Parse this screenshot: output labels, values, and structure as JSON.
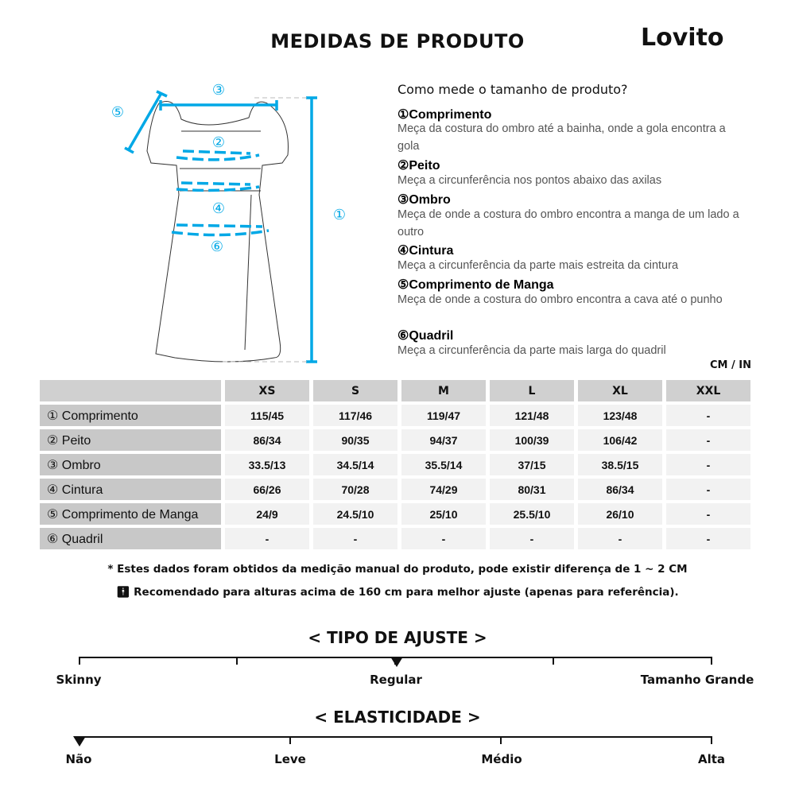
{
  "header": {
    "title": "MEDIDAS DE PRODUTO",
    "brand": "Lovito"
  },
  "guide": {
    "question": "Como mede o tamanho de produto?",
    "items": [
      {
        "title": "①Comprimento",
        "desc": "Meça da costura do ombro até a bainha, onde a gola encontra a gola"
      },
      {
        "title": "②Peito",
        "desc": "Meça a circunferência nos pontos abaixo das axilas"
      },
      {
        "title": "③Ombro",
        "desc": "Meça de onde a costura do ombro encontra a manga de um lado a outro"
      },
      {
        "title": "④Cintura",
        "desc": "Meça a circunferência da parte mais estreita da cintura"
      },
      {
        "title": "⑤Comprimento de Manga",
        "desc": "Meça de onde a costura do ombro encontra a cava até o punho"
      },
      {
        "title": "⑥Quadril",
        "desc": "Meça a circunferência da parte mais larga do quadril"
      }
    ]
  },
  "diagram": {
    "labels": [
      "①",
      "②",
      "③",
      "④",
      "⑤",
      "⑥"
    ],
    "accent": "#00a8e6"
  },
  "table": {
    "unit": "CM / IN",
    "sizes": [
      "XS",
      "S",
      "M",
      "L",
      "XL",
      "XXL"
    ],
    "rows": [
      {
        "label": "① Comprimento",
        "values": [
          "115/45",
          "117/46",
          "119/47",
          "121/48",
          "123/48",
          "-"
        ]
      },
      {
        "label": "② Peito",
        "values": [
          "86/34",
          "90/35",
          "94/37",
          "100/39",
          "106/42",
          "-"
        ]
      },
      {
        "label": "③ Ombro",
        "values": [
          "33.5/13",
          "34.5/14",
          "35.5/14",
          "37/15",
          "38.5/15",
          "-"
        ]
      },
      {
        "label": "④ Cintura",
        "values": [
          "66/26",
          "70/28",
          "74/29",
          "80/31",
          "86/34",
          "-"
        ]
      },
      {
        "label": "⑤ Comprimento de Manga",
        "values": [
          "24/9",
          "24.5/10",
          "25/10",
          "25.5/10",
          "26/10",
          "-"
        ]
      },
      {
        "label": "⑥ Quadril",
        "values": [
          "-",
          "-",
          "-",
          "-",
          "-",
          "-"
        ]
      }
    ]
  },
  "notes": {
    "manual": "* Estes dados foram obtidos da medição manual do produto, pode existir diferença de 1 ~ 2 CM",
    "height": "Recomendado para alturas acima de 160 cm para melhor ajuste (apenas para referência)."
  },
  "fit": {
    "title": "< TIPO DE AJUSTE >",
    "labels": [
      "Skinny",
      "Regular",
      "Tamanho Grande"
    ],
    "selected": "Regular",
    "level": 0.5
  },
  "elasticity": {
    "title": "< ELASTICIDADE >",
    "labels": [
      "Não",
      "Leve",
      "Médio",
      "Alta"
    ],
    "selected": "Não",
    "level": 0
  }
}
